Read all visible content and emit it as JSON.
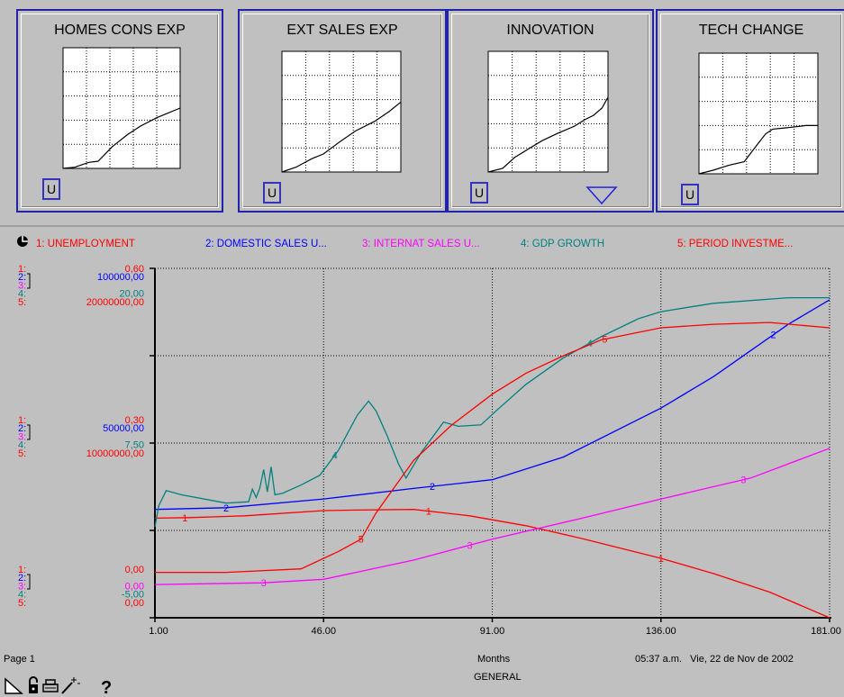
{
  "panels": [
    {
      "title": "HOMES CONS EXP",
      "button": "U",
      "curve": [
        [
          0,
          100
        ],
        [
          10,
          99
        ],
        [
          22,
          95
        ],
        [
          30,
          94
        ],
        [
          42,
          82
        ],
        [
          55,
          72
        ],
        [
          66,
          65
        ],
        [
          80,
          58
        ],
        [
          100,
          50
        ]
      ]
    },
    {
      "title": "EXT SALES EXP",
      "button": "U",
      "curve": [
        [
          0,
          100
        ],
        [
          12,
          96
        ],
        [
          25,
          89
        ],
        [
          35,
          85
        ],
        [
          50,
          74
        ],
        [
          62,
          66
        ],
        [
          78,
          58
        ],
        [
          90,
          50
        ],
        [
          100,
          42
        ]
      ]
    },
    {
      "title": "INNOVATION",
      "button": "U",
      "curve": [
        [
          0,
          100
        ],
        [
          12,
          97
        ],
        [
          22,
          88
        ],
        [
          35,
          80
        ],
        [
          45,
          74
        ],
        [
          58,
          68
        ],
        [
          72,
          62
        ],
        [
          80,
          57
        ],
        [
          88,
          53
        ],
        [
          95,
          47
        ],
        [
          100,
          38
        ]
      ]
    },
    {
      "title": "TECH CHANGE",
      "button": "U",
      "curve": [
        [
          0,
          100
        ],
        [
          12,
          97
        ],
        [
          25,
          93
        ],
        [
          38,
          90
        ],
        [
          48,
          77
        ],
        [
          56,
          67
        ],
        [
          62,
          63
        ],
        [
          72,
          62
        ],
        [
          82,
          61
        ],
        [
          90,
          60
        ],
        [
          100,
          60
        ]
      ]
    }
  ],
  "chart_data": {
    "type": "line",
    "x_ticks": [
      "1.00",
      "46.00",
      "91.00",
      "136.00",
      "181.00"
    ],
    "xlabel": "Months",
    "xlim": [
      1,
      181
    ],
    "legend": [
      {
        "label": "1: UNEMPLOYMENT",
        "color": "#ff0000"
      },
      {
        "label": "2: DOMESTIC SALES U...",
        "color": "#0000ff"
      },
      {
        "label": "3: INTERNAT SALES U...",
        "color": "#ff00ff"
      },
      {
        "label": "4: GDP GROWTH",
        "color": "#008080"
      },
      {
        "label": "5: PERIOD INVESTME...",
        "color": "#ff0000"
      }
    ],
    "axis_labels": {
      "top": [
        {
          "num": "1:",
          "val": "0,60",
          "color": "#ff0000"
        },
        {
          "num": "2:",
          "val": "100000,00",
          "color": "#0000ff"
        },
        {
          "num": "3:",
          "val": "",
          "color": "#ff00ff"
        },
        {
          "num": "4:",
          "val": "20,00",
          "color": "#008080"
        },
        {
          "num": "5:",
          "val": "20000000,00",
          "color": "#ff0000"
        }
      ],
      "mid": [
        {
          "num": "1:",
          "val": "0,30",
          "color": "#ff0000"
        },
        {
          "num": "2:",
          "val": "50000,00",
          "color": "#0000ff"
        },
        {
          "num": "3:",
          "val": "",
          "color": "#ff00ff"
        },
        {
          "num": "4:",
          "val": "7,50",
          "color": "#008080"
        },
        {
          "num": "5:",
          "val": "10000000,00",
          "color": "#ff0000"
        }
      ],
      "bottom": [
        {
          "num": "1:",
          "val": "0,00",
          "color": "#ff0000"
        },
        {
          "num": "2:",
          "val": "",
          "color": "#0000ff"
        },
        {
          "num": "3:",
          "val": "0,00",
          "color": "#ff00ff"
        },
        {
          "num": "4:",
          "val": "-5,00",
          "color": "#008080"
        },
        {
          "num": "5:",
          "val": "0,00",
          "color": "#ff0000"
        }
      ]
    },
    "series": [
      {
        "id": "1",
        "color": "#ff0000",
        "ylim": [
          0,
          0.6
        ],
        "x": [
          1,
          10,
          25,
          46,
          55,
          70,
          85,
          100,
          115,
          136,
          150,
          165,
          181
        ],
        "y": [
          0.171,
          0.172,
          0.175,
          0.184,
          0.185,
          0.186,
          0.175,
          0.158,
          0.136,
          0.102,
          0.076,
          0.044,
          0.0
        ]
      },
      {
        "id": "2",
        "color": "#0000ff",
        "ylim": [
          0,
          100000
        ],
        "x": [
          1,
          20,
          46,
          70,
          91,
          110,
          136,
          150,
          160,
          170,
          181
        ],
        "y": [
          31000,
          31500,
          34000,
          37000,
          39500,
          46000,
          60000,
          69000,
          76500,
          84000,
          91000
        ]
      },
      {
        "id": "3",
        "color": "#ff00ff",
        "ylim": [
          0,
          100000
        ],
        "x": [
          1,
          30,
          46,
          70,
          91,
          115,
          136,
          160,
          181
        ],
        "y": [
          9500,
          10000,
          11000,
          16500,
          22500,
          28500,
          34000,
          40000,
          48500
        ]
      },
      {
        "id": "4",
        "color": "#008080",
        "ylim": [
          -5,
          20
        ],
        "x": [
          1,
          2,
          4,
          8,
          20,
          26,
          27,
          28,
          29,
          30,
          31,
          32,
          33,
          35,
          40,
          45,
          50,
          55,
          58,
          60,
          63,
          66,
          68,
          72,
          78,
          82,
          88,
          92,
          100,
          110,
          120,
          130,
          136,
          150,
          170,
          181
        ],
        "y": [
          1.5,
          3.0,
          4.1,
          3.8,
          3.2,
          3.3,
          4.2,
          3.6,
          4.3,
          5.6,
          4.0,
          5.8,
          3.8,
          3.9,
          4.5,
          5.2,
          7.0,
          9.5,
          10.5,
          9.8,
          8.0,
          6.0,
          5.0,
          6.8,
          9.0,
          8.7,
          8.8,
          9.8,
          11.7,
          13.6,
          15.1,
          16.4,
          16.9,
          17.5,
          17.9,
          17.9
        ]
      },
      {
        "id": "5",
        "color": "#ff0000",
        "ylim": [
          0,
          20000000
        ],
        "x": [
          1,
          20,
          40,
          50,
          56,
          60,
          65,
          70,
          80,
          91,
          100,
          110,
          120,
          136,
          150,
          165,
          181
        ],
        "y": [
          2600000,
          2600000,
          2800000,
          3800000,
          4500000,
          6000000,
          7500000,
          9000000,
          11000000,
          12800000,
          14000000,
          15000000,
          15900000,
          16600000,
          16800000,
          16900000,
          16600000
        ]
      }
    ],
    "series_label_positions": {
      "1": [
        9,
        74,
        136
      ],
      "2": [
        20,
        75,
        166
      ],
      "3": [
        30,
        85,
        158
      ],
      "4": [
        49,
        117
      ],
      "5": [
        56,
        121
      ]
    }
  },
  "footer": {
    "page": "Page 1",
    "xlabel": "Months",
    "timestamp": "05:37 a.m.   Vie, 22 de Nov de 2002",
    "sheet": "GENERAL",
    "help": "?"
  }
}
